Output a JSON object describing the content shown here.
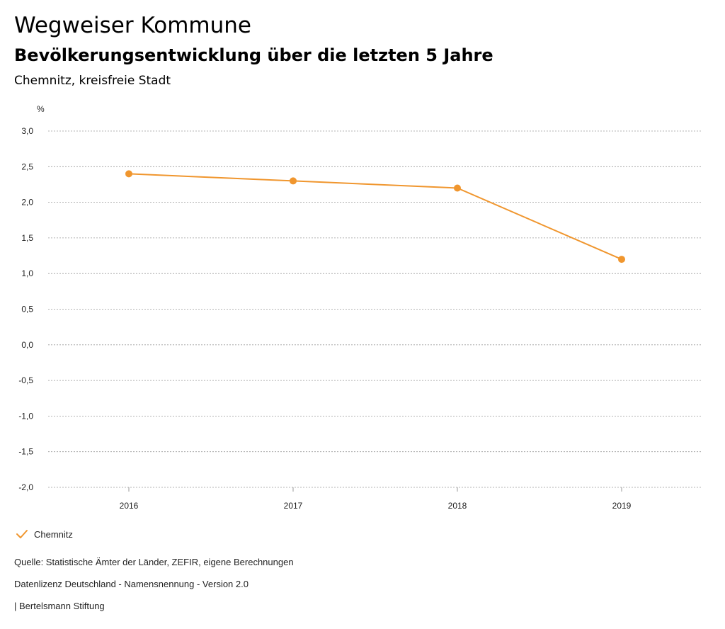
{
  "header": {
    "title": "Wegweiser Kommune",
    "subtitle": "Bevölkerungsentwicklung über die letzten 5 Jahre",
    "region": "Chemnitz, kreisfreie Stadt"
  },
  "chart_data": {
    "type": "line",
    "title": "Bevölkerungsentwicklung über die letzten 5 Jahre",
    "ylabel": "%",
    "xlabel": "",
    "categories": [
      "2016",
      "2017",
      "2018",
      "2019"
    ],
    "series": [
      {
        "name": "Chemnitz",
        "values": [
          2.4,
          2.3,
          2.2,
          1.2
        ],
        "color": "#f0962e"
      }
    ],
    "ylim": [
      -2.0,
      3.0
    ],
    "yticks": [
      3.0,
      2.5,
      2.0,
      1.5,
      1.0,
      0.5,
      0.0,
      -0.5,
      -1.0,
      -1.5,
      -2.0
    ],
    "ytick_labels": [
      "3,0",
      "2,5",
      "2,0",
      "1,5",
      "1,0",
      "0,5",
      "0,0",
      "-0,5",
      "-1,0",
      "-1,5",
      "-2,0"
    ],
    "grid": true,
    "legend": "bottom-left"
  },
  "legend": {
    "label": "Chemnitz",
    "color": "#f0962e",
    "icon": "checkmark-icon"
  },
  "footer": {
    "source": "Quelle: Statistische Ämter der Länder, ZEFIR, eigene Berechnungen",
    "license": "Datenlizenz Deutschland - Namensnennung - Version 2.0",
    "brand": "| Bertelsmann Stiftung"
  }
}
